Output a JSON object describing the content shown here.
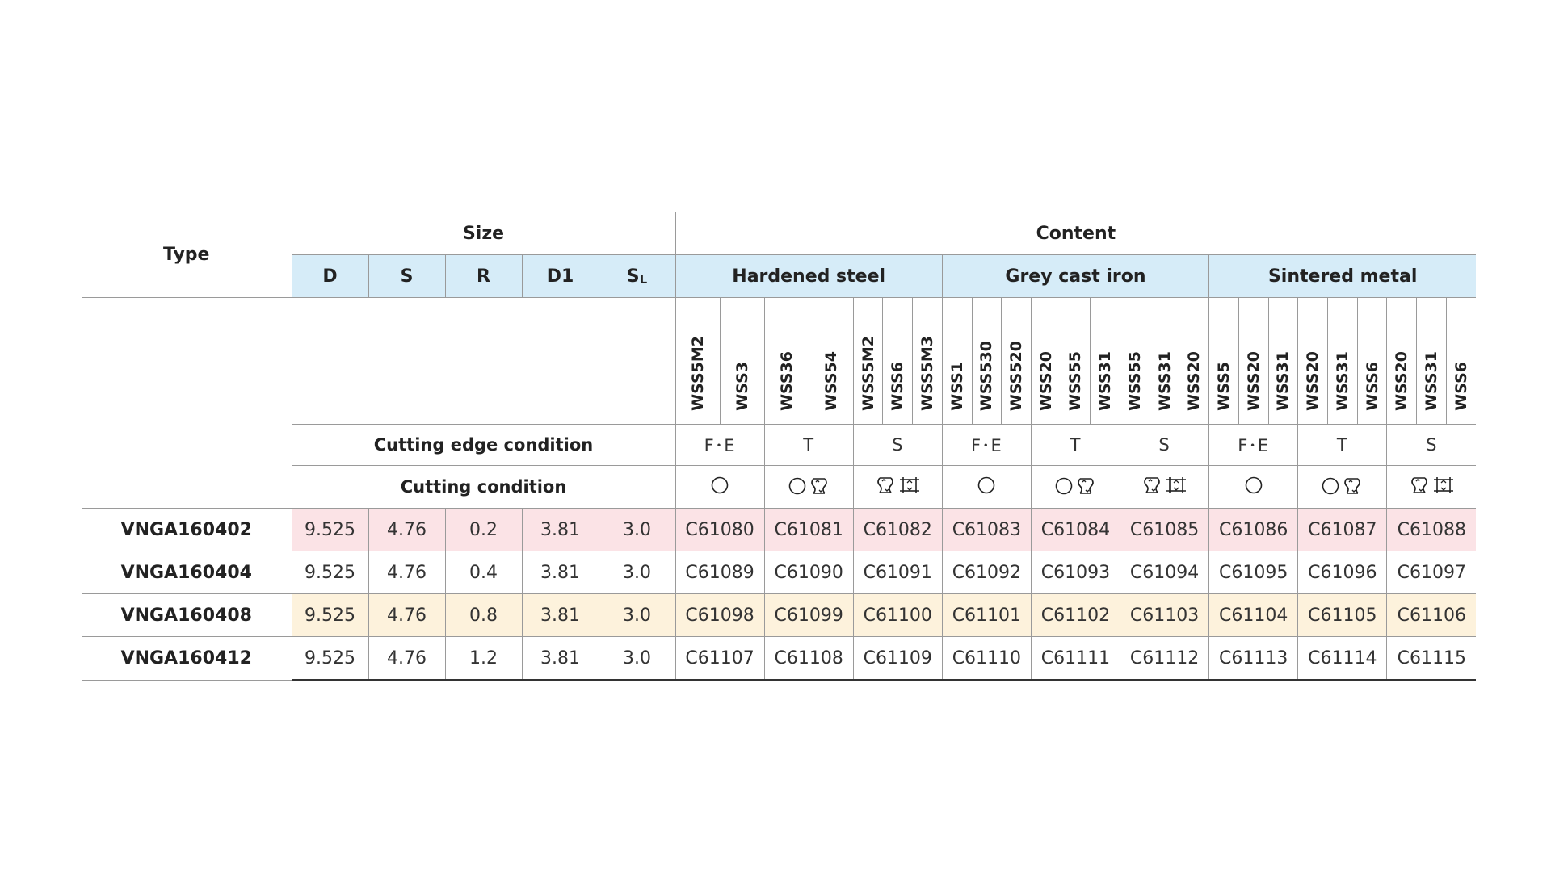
{
  "header": {
    "type_label": "Type",
    "size_label": "Size",
    "content_label": "Content",
    "size_cols": [
      "D",
      "S",
      "R",
      "D1"
    ],
    "sl_main": "S",
    "sl_sub": "L",
    "materials": [
      "Hardened steel",
      "Grey cast iron",
      "Sintered metal"
    ],
    "grades": [
      "WSS5M2",
      "WSS3",
      "WSS36",
      "WSS54",
      "WSS5M2",
      "WSS6",
      "WSS5M3",
      "WSS1",
      "WSS530",
      "WSS520",
      "WSS20",
      "WSS55",
      "WSS31",
      "WSS55",
      "WSS31",
      "WSS20",
      "WSS5",
      "WSS20",
      "WSS31",
      "WSS20",
      "WSS31",
      "WSS6",
      "WSS20",
      "WSS31",
      "WSS6"
    ],
    "cutting_edge_label": "Cutting edge condition",
    "cutting_condition_label": "Cutting condition",
    "edge_conditions": [
      "F･E",
      "T",
      "S",
      "F･E",
      "T",
      "S",
      "F･E",
      "T",
      "S"
    ],
    "cutting_condition_icons": [
      [
        "circle-icon"
      ],
      [
        "circle-icon",
        "side-cut-icon"
      ],
      [
        "side-cut-icon",
        "full-cut-icon"
      ],
      [
        "circle-icon"
      ],
      [
        "circle-icon",
        "side-cut-icon"
      ],
      [
        "side-cut-icon",
        "full-cut-icon"
      ],
      [
        "circle-icon"
      ],
      [
        "circle-icon",
        "side-cut-icon"
      ],
      [
        "side-cut-icon",
        "full-cut-icon"
      ]
    ]
  },
  "rows": [
    {
      "type": "VNGA160402",
      "sizes": [
        "9.525",
        "4.76",
        "0.2",
        "3.81",
        "3.0"
      ],
      "codes": [
        "C61080",
        "C61081",
        "C61082",
        "C61083",
        "C61084",
        "C61085",
        "C61086",
        "C61087",
        "C61088"
      ],
      "tint": "pink"
    },
    {
      "type": "VNGA160404",
      "sizes": [
        "9.525",
        "4.76",
        "0.4",
        "3.81",
        "3.0"
      ],
      "codes": [
        "C61089",
        "C61090",
        "C61091",
        "C61092",
        "C61093",
        "C61094",
        "C61095",
        "C61096",
        "C61097"
      ],
      "tint": "none"
    },
    {
      "type": "VNGA160408",
      "sizes": [
        "9.525",
        "4.76",
        "0.8",
        "3.81",
        "3.0"
      ],
      "codes": [
        "C61098",
        "C61099",
        "C61100",
        "C61101",
        "C61102",
        "C61103",
        "C61104",
        "C61105",
        "C61106"
      ],
      "tint": "cream"
    },
    {
      "type": "VNGA160412",
      "sizes": [
        "9.525",
        "4.76",
        "1.2",
        "3.81",
        "3.0"
      ],
      "codes": [
        "C61107",
        "C61108",
        "C61109",
        "C61110",
        "C61111",
        "C61112",
        "C61113",
        "C61114",
        "C61115"
      ],
      "tint": "none"
    }
  ],
  "colors": {
    "header_blue": "#d6ecf8",
    "row_pink": "#fbe3e6",
    "row_cream": "#fdf2dc"
  }
}
